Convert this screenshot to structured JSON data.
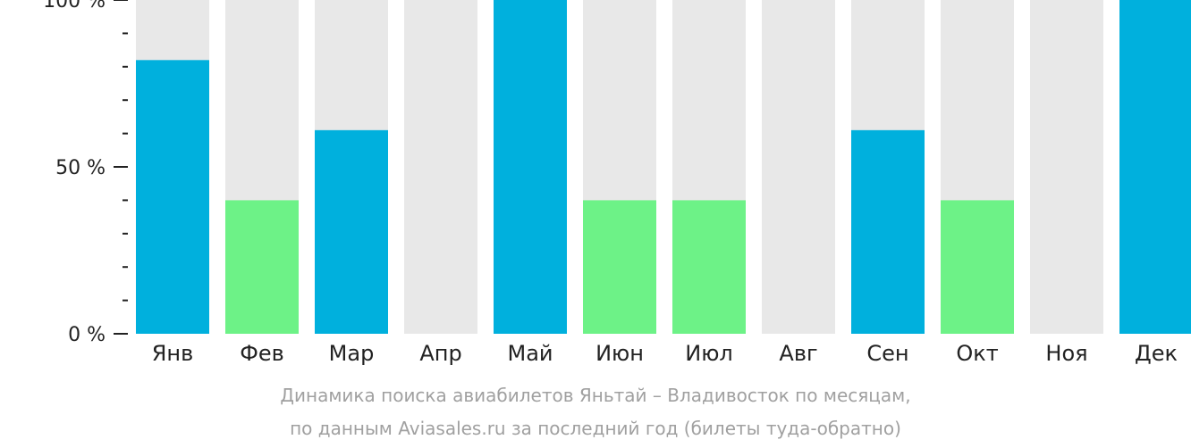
{
  "chart_data": {
    "type": "bar",
    "categories": [
      "Янв",
      "Фев",
      "Мар",
      "Апр",
      "Май",
      "Июн",
      "Июл",
      "Авг",
      "Сен",
      "Окт",
      "Ноя",
      "Дек"
    ],
    "values": [
      82,
      40,
      61,
      0,
      100,
      40,
      40,
      0,
      61,
      40,
      0,
      100
    ],
    "ylim": [
      0,
      100
    ],
    "yticks": [
      {
        "value": 0,
        "label": "0 %"
      },
      {
        "value": 50,
        "label": "50 %"
      },
      {
        "value": 100,
        "label": "100 %"
      }
    ],
    "minor_tick_step": 10,
    "caption": [
      "Динамика поиска авиабилетов Яньтай – Владивосток по месяцам,",
      "по данным Aviasales.ru за последний год (билеты туда-обратно)"
    ],
    "colors": {
      "high": "#00b0dd",
      "low": "#6df287",
      "background": "#e8e8e8",
      "axis": "#222222"
    }
  }
}
